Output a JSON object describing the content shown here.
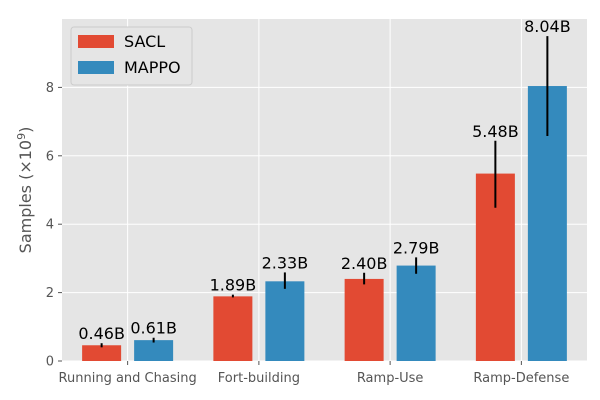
{
  "chart_data": {
    "type": "bar",
    "categories": [
      "Running and Chasing",
      "Fort-building",
      "Ramp-Use",
      "Ramp-Defense"
    ],
    "series": [
      {
        "name": "SACL",
        "color": "#E24A33",
        "values": [
          0.46,
          1.89,
          2.4,
          5.48
        ],
        "error_low": [
          0.4,
          1.86,
          2.24,
          4.48
        ],
        "error_high": [
          0.52,
          1.94,
          2.58,
          6.44
        ],
        "labels": [
          "0.46B",
          "1.89B",
          "2.40B",
          "5.48B"
        ]
      },
      {
        "name": "MAPPO",
        "color": "#348ABD",
        "values": [
          0.61,
          2.33,
          2.79,
          8.04
        ],
        "error_low": [
          0.54,
          2.11,
          2.55,
          6.58
        ],
        "error_high": [
          0.68,
          2.59,
          3.03,
          9.5
        ],
        "labels": [
          "0.61B",
          "2.33B",
          "2.79B",
          "8.04B"
        ]
      }
    ],
    "ylabel": "Samples (×10",
    "ylabel_exp": "9",
    "ylabel_close": ")",
    "ylim": [
      0,
      10
    ],
    "yticks": [
      0,
      2,
      4,
      6,
      8
    ],
    "grid": true,
    "legend_position": "top-left",
    "background": "#E5E5E5"
  }
}
